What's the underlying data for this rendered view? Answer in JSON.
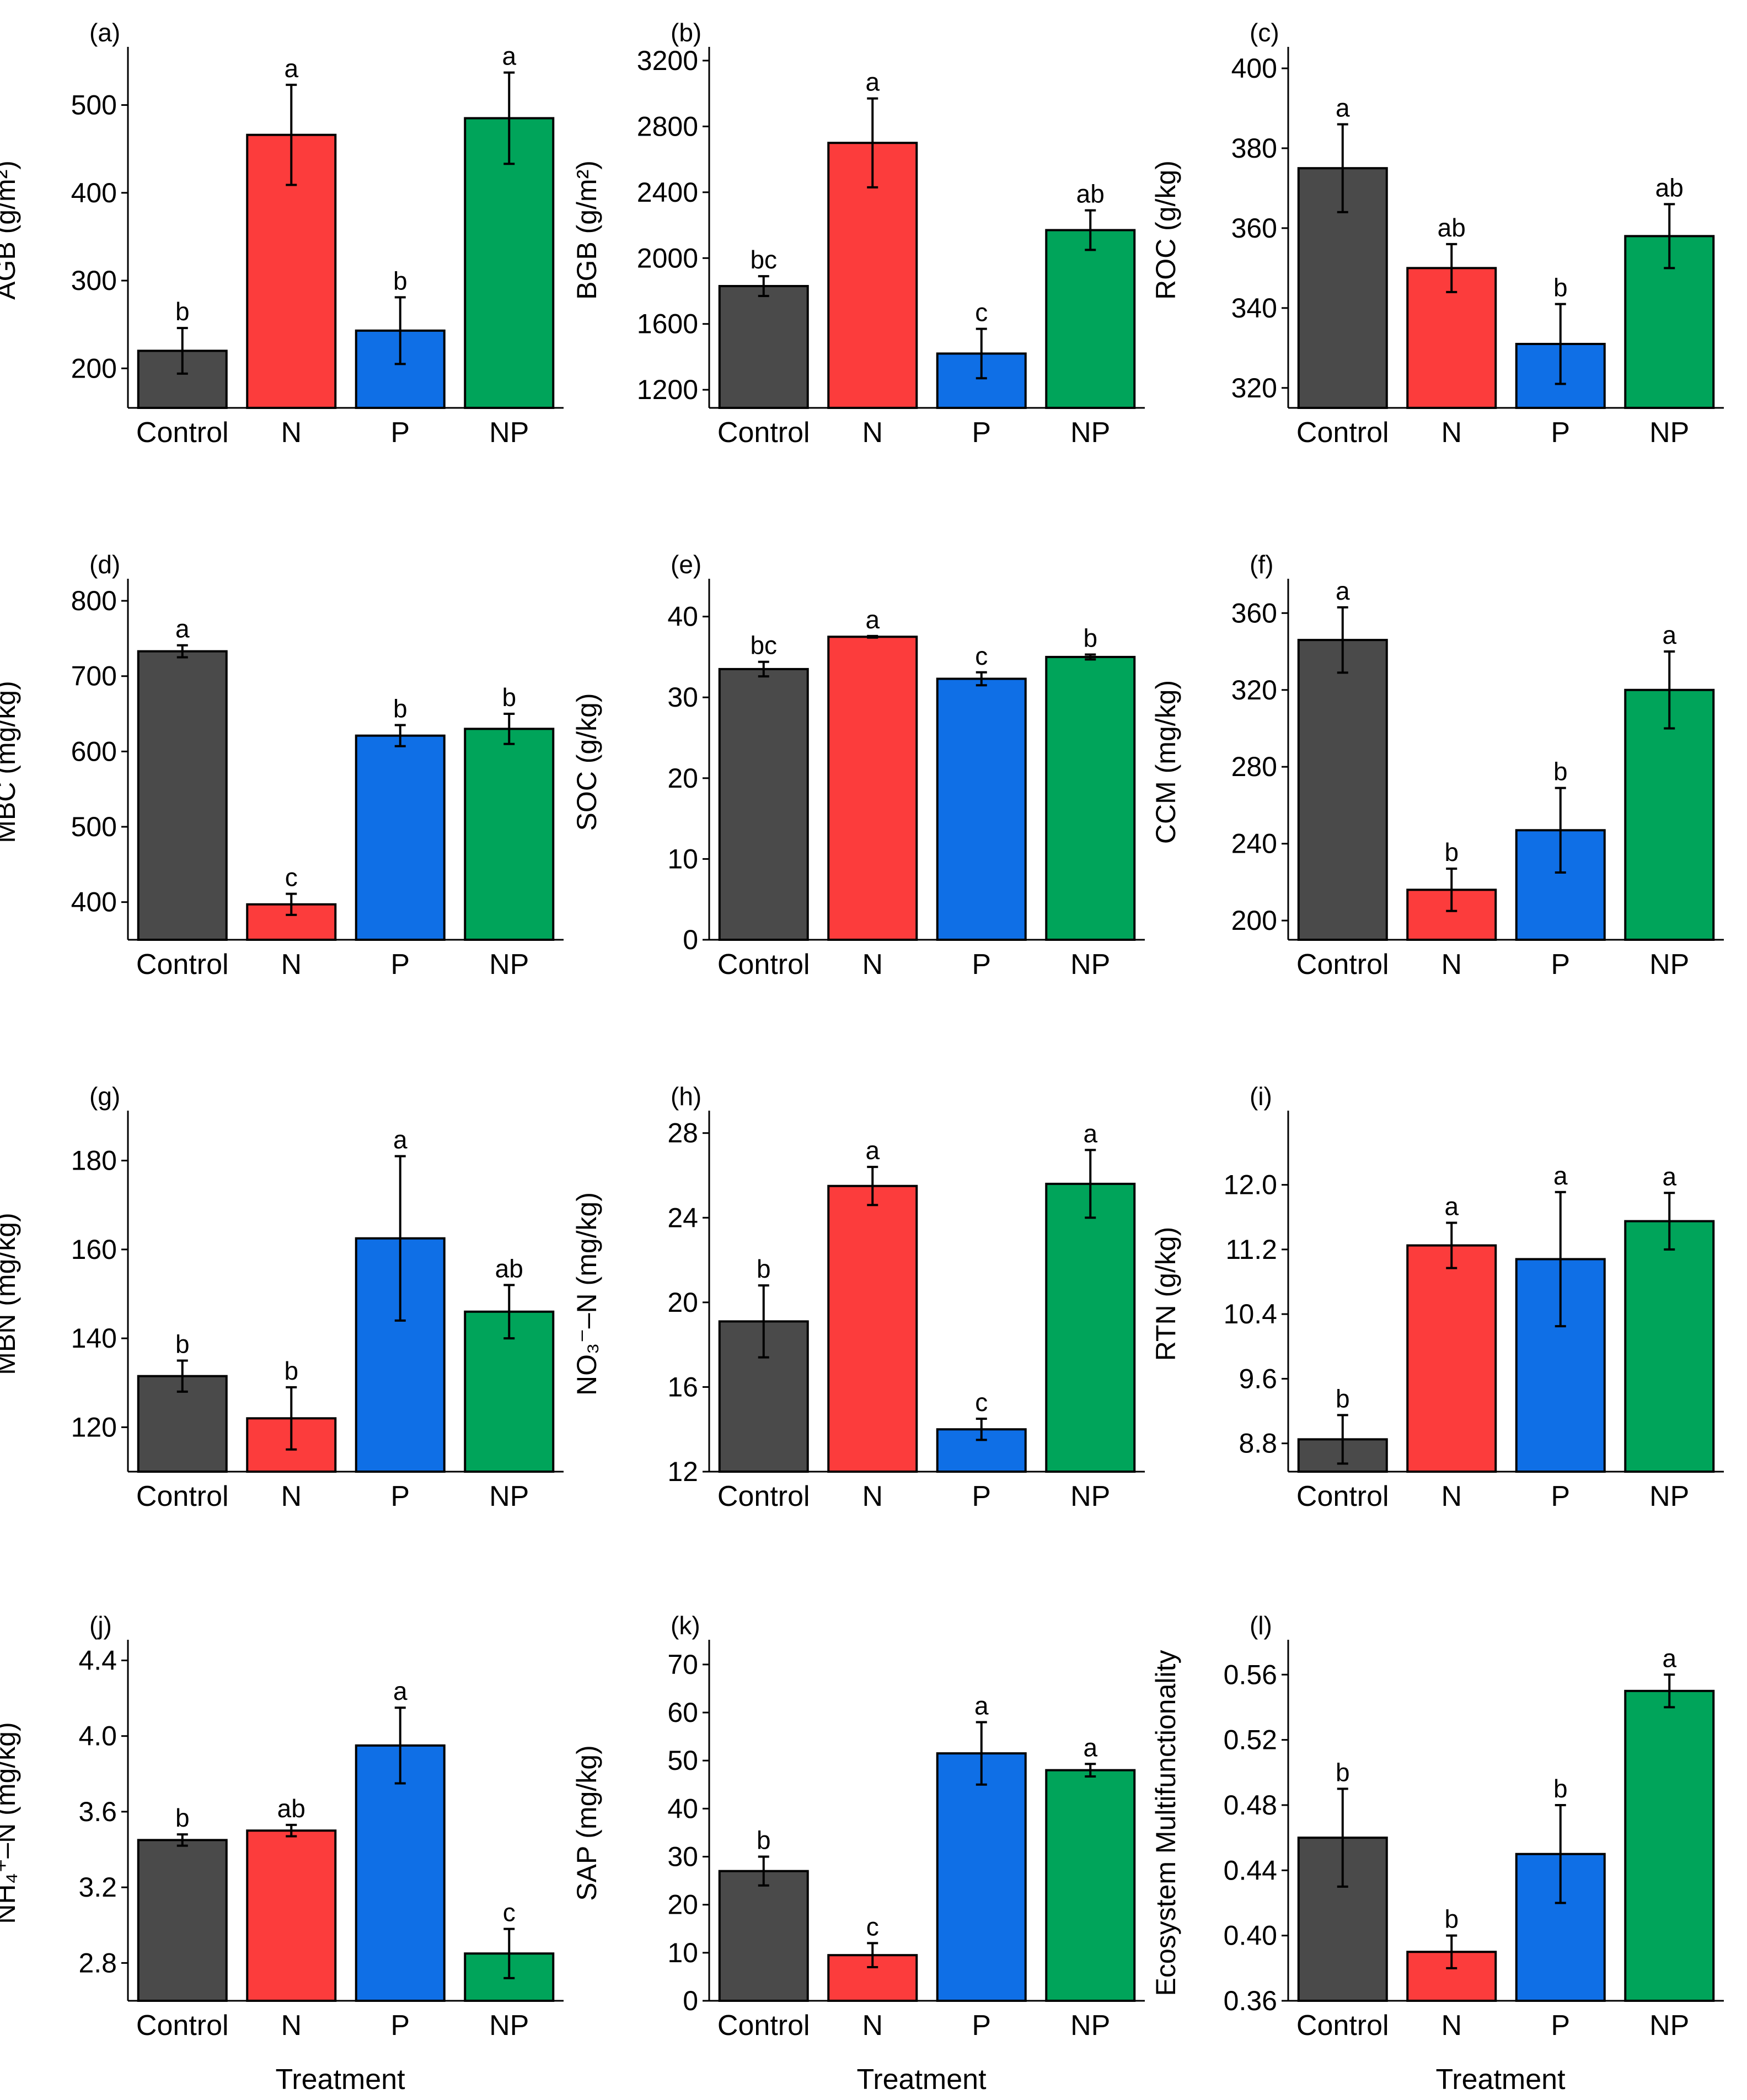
{
  "figure": {
    "categories": [
      "Control",
      "N",
      "P",
      "NP"
    ],
    "colors": [
      "#4a4a4a",
      "#fc3c3c",
      "#0f6fe6",
      "#00a45a"
    ],
    "x_title": "Treatment"
  },
  "chart_data": [
    {
      "id": "a",
      "panel_label": "(a)",
      "type": "bar",
      "ylabel": "AGB (g/m²)",
      "categories": [
        "Control",
        "N",
        "P",
        "NP"
      ],
      "values": [
        220,
        466,
        243,
        485
      ],
      "errors": [
        26,
        57,
        38,
        52
      ],
      "letters": [
        "b",
        "a",
        "b",
        "a"
      ],
      "ylim": [
        155,
        560
      ],
      "yticks": [
        200,
        300,
        400,
        500
      ],
      "tick_labels": [
        "200",
        "300",
        "400",
        "500"
      ],
      "xlabel": ""
    },
    {
      "id": "b",
      "panel_label": "(b)",
      "type": "bar",
      "ylabel": "BGB (g/m²)",
      "categories": [
        "Control",
        "N",
        "P",
        "NP"
      ],
      "values": [
        1830,
        2700,
        1420,
        2170
      ],
      "errors": [
        60,
        270,
        150,
        120
      ],
      "letters": [
        "bc",
        "a",
        "c",
        "ab"
      ],
      "ylim": [
        1090,
        3250
      ],
      "yticks": [
        1200,
        1600,
        2000,
        2400,
        2800,
        3200
      ],
      "tick_labels": [
        "1200",
        "1600",
        "2000",
        "2400",
        "2800",
        "3200"
      ],
      "xlabel": ""
    },
    {
      "id": "c",
      "panel_label": "(c)",
      "type": "bar",
      "ylabel": "ROC (g/kg)",
      "categories": [
        "Control",
        "N",
        "P",
        "NP"
      ],
      "values": [
        375,
        350,
        331,
        358
      ],
      "errors": [
        11,
        6,
        10,
        8
      ],
      "letters": [
        "a",
        "ab",
        "b",
        "ab"
      ],
      "ylim": [
        315,
        404
      ],
      "yticks": [
        320,
        340,
        360,
        380,
        400
      ],
      "tick_labels": [
        "320",
        "340",
        "360",
        "380",
        "400"
      ],
      "xlabel": ""
    },
    {
      "id": "d",
      "panel_label": "(d)",
      "type": "bar",
      "ylabel": "MBC (mg/kg)",
      "categories": [
        "Control",
        "N",
        "P",
        "NP"
      ],
      "values": [
        733,
        397,
        621,
        630
      ],
      "errors": [
        8,
        14,
        14,
        20
      ],
      "letters": [
        "a",
        "c",
        "b",
        "b"
      ],
      "ylim": [
        350,
        822
      ],
      "yticks": [
        400,
        500,
        600,
        700,
        800
      ],
      "tick_labels": [
        "400",
        "500",
        "600",
        "700",
        "800"
      ],
      "xlabel": ""
    },
    {
      "id": "e",
      "panel_label": "(e)",
      "type": "bar",
      "ylabel": "SOC (g/kg)",
      "categories": [
        "Control",
        "N",
        "P",
        "NP"
      ],
      "values": [
        33.5,
        37.5,
        32.3,
        35.0
      ],
      "errors": [
        0.9,
        0.1,
        0.8,
        0.3
      ],
      "letters": [
        "bc",
        "a",
        "c",
        "b"
      ],
      "ylim": [
        0,
        44
      ],
      "yticks": [
        0,
        10,
        20,
        30,
        40
      ],
      "tick_labels": [
        "0",
        "10",
        "20",
        "30",
        "40"
      ],
      "xlabel": ""
    },
    {
      "id": "f",
      "panel_label": "(f)",
      "type": "bar",
      "ylabel": "CCM (mg/kg)",
      "categories": [
        "Control",
        "N",
        "P",
        "NP"
      ],
      "values": [
        346,
        216,
        247,
        320
      ],
      "errors": [
        17,
        11,
        22,
        20
      ],
      "letters": [
        "a",
        "b",
        "b",
        "a"
      ],
      "ylim": [
        190,
        375
      ],
      "yticks": [
        200,
        240,
        280,
        320,
        360
      ],
      "tick_labels": [
        "200",
        "240",
        "280",
        "320",
        "360"
      ],
      "xlabel": ""
    },
    {
      "id": "g",
      "panel_label": "(g)",
      "type": "bar",
      "ylabel": "MBN (mg/kg)",
      "categories": [
        "Control",
        "N",
        "P",
        "NP"
      ],
      "values": [
        131.5,
        122,
        162.5,
        146
      ],
      "errors": [
        3.5,
        7,
        18.5,
        6
      ],
      "letters": [
        "b",
        "b",
        "a",
        "ab"
      ],
      "ylim": [
        110,
        190
      ],
      "yticks": [
        120,
        140,
        160,
        180
      ],
      "tick_labels": [
        "120",
        "140",
        "160",
        "180"
      ],
      "xlabel": ""
    },
    {
      "id": "h",
      "panel_label": "(h)",
      "type": "bar",
      "ylabel": "NO₃⁻–N (mg/kg)",
      "categories": [
        "Control",
        "N",
        "P",
        "NP"
      ],
      "values": [
        19.1,
        25.5,
        14.0,
        25.6
      ],
      "errors": [
        1.7,
        0.9,
        0.5,
        1.6
      ],
      "letters": [
        "b",
        "a",
        "c",
        "a"
      ],
      "ylim": [
        12,
        28.8
      ],
      "yticks": [
        12,
        16,
        20,
        24,
        28
      ],
      "tick_labels": [
        "12",
        "16",
        "20",
        "24",
        "28"
      ],
      "xlabel": ""
    },
    {
      "id": "i",
      "panel_label": "(i)",
      "type": "bar",
      "ylabel": "RTN (g/kg)",
      "categories": [
        "Control",
        "N",
        "P",
        "NP"
      ],
      "values": [
        8.85,
        11.25,
        11.08,
        11.55
      ],
      "errors": [
        0.3,
        0.28,
        0.83,
        0.35
      ],
      "letters": [
        "b",
        "a",
        "a",
        "a"
      ],
      "ylim": [
        8.45,
        12.85
      ],
      "yticks": [
        8.8,
        9.6,
        10.4,
        11.2,
        12.0
      ],
      "tick_labels": [
        "8.8",
        "9.6",
        "10.4",
        "11.2",
        "12.0"
      ],
      "xlabel": ""
    },
    {
      "id": "j",
      "panel_label": "(j)",
      "type": "bar",
      "ylabel": "NH₄⁺–N (mg/kg)",
      "categories": [
        "Control",
        "N",
        "P",
        "NP"
      ],
      "values": [
        3.45,
        3.5,
        3.95,
        2.85
      ],
      "errors": [
        0.03,
        0.03,
        0.2,
        0.13
      ],
      "letters": [
        "b",
        "ab",
        "a",
        "c"
      ],
      "ylim": [
        2.6,
        4.48
      ],
      "yticks": [
        2.8,
        3.2,
        3.6,
        4.0,
        4.4
      ],
      "tick_labels": [
        "2.8",
        "3.2",
        "3.6",
        "4.0",
        "4.4"
      ],
      "xlabel": "Treatment"
    },
    {
      "id": "k",
      "panel_label": "(k)",
      "type": "bar",
      "ylabel": "SAP (mg/kg)",
      "categories": [
        "Control",
        "N",
        "P",
        "NP"
      ],
      "values": [
        27,
        9.5,
        51.5,
        48
      ],
      "errors": [
        3,
        2.5,
        6.5,
        1.3
      ],
      "letters": [
        "b",
        "c",
        "a",
        "a"
      ],
      "ylim": [
        0,
        74
      ],
      "yticks": [
        0,
        10,
        20,
        30,
        40,
        50,
        60,
        70
      ],
      "tick_labels": [
        "0",
        "10",
        "20",
        "30",
        "40",
        "50",
        "60",
        "70"
      ],
      "xlabel": "Treatment"
    },
    {
      "id": "l",
      "panel_label": "(l)",
      "type": "bar",
      "ylabel": "Ecosystem Multifunctionality",
      "categories": [
        "Control",
        "N",
        "P",
        "NP"
      ],
      "values": [
        0.46,
        0.39,
        0.45,
        0.55
      ],
      "errors": [
        0.03,
        0.01,
        0.03,
        0.01
      ],
      "letters": [
        "b",
        "b",
        "b",
        "a"
      ],
      "ylim": [
        0.36,
        0.578
      ],
      "yticks": [
        0.36,
        0.4,
        0.44,
        0.48,
        0.52,
        0.56
      ],
      "tick_labels": [
        "0.36",
        "0.40",
        "0.44",
        "0.48",
        "0.52",
        "0.56"
      ],
      "xlabel": "Treatment"
    }
  ]
}
